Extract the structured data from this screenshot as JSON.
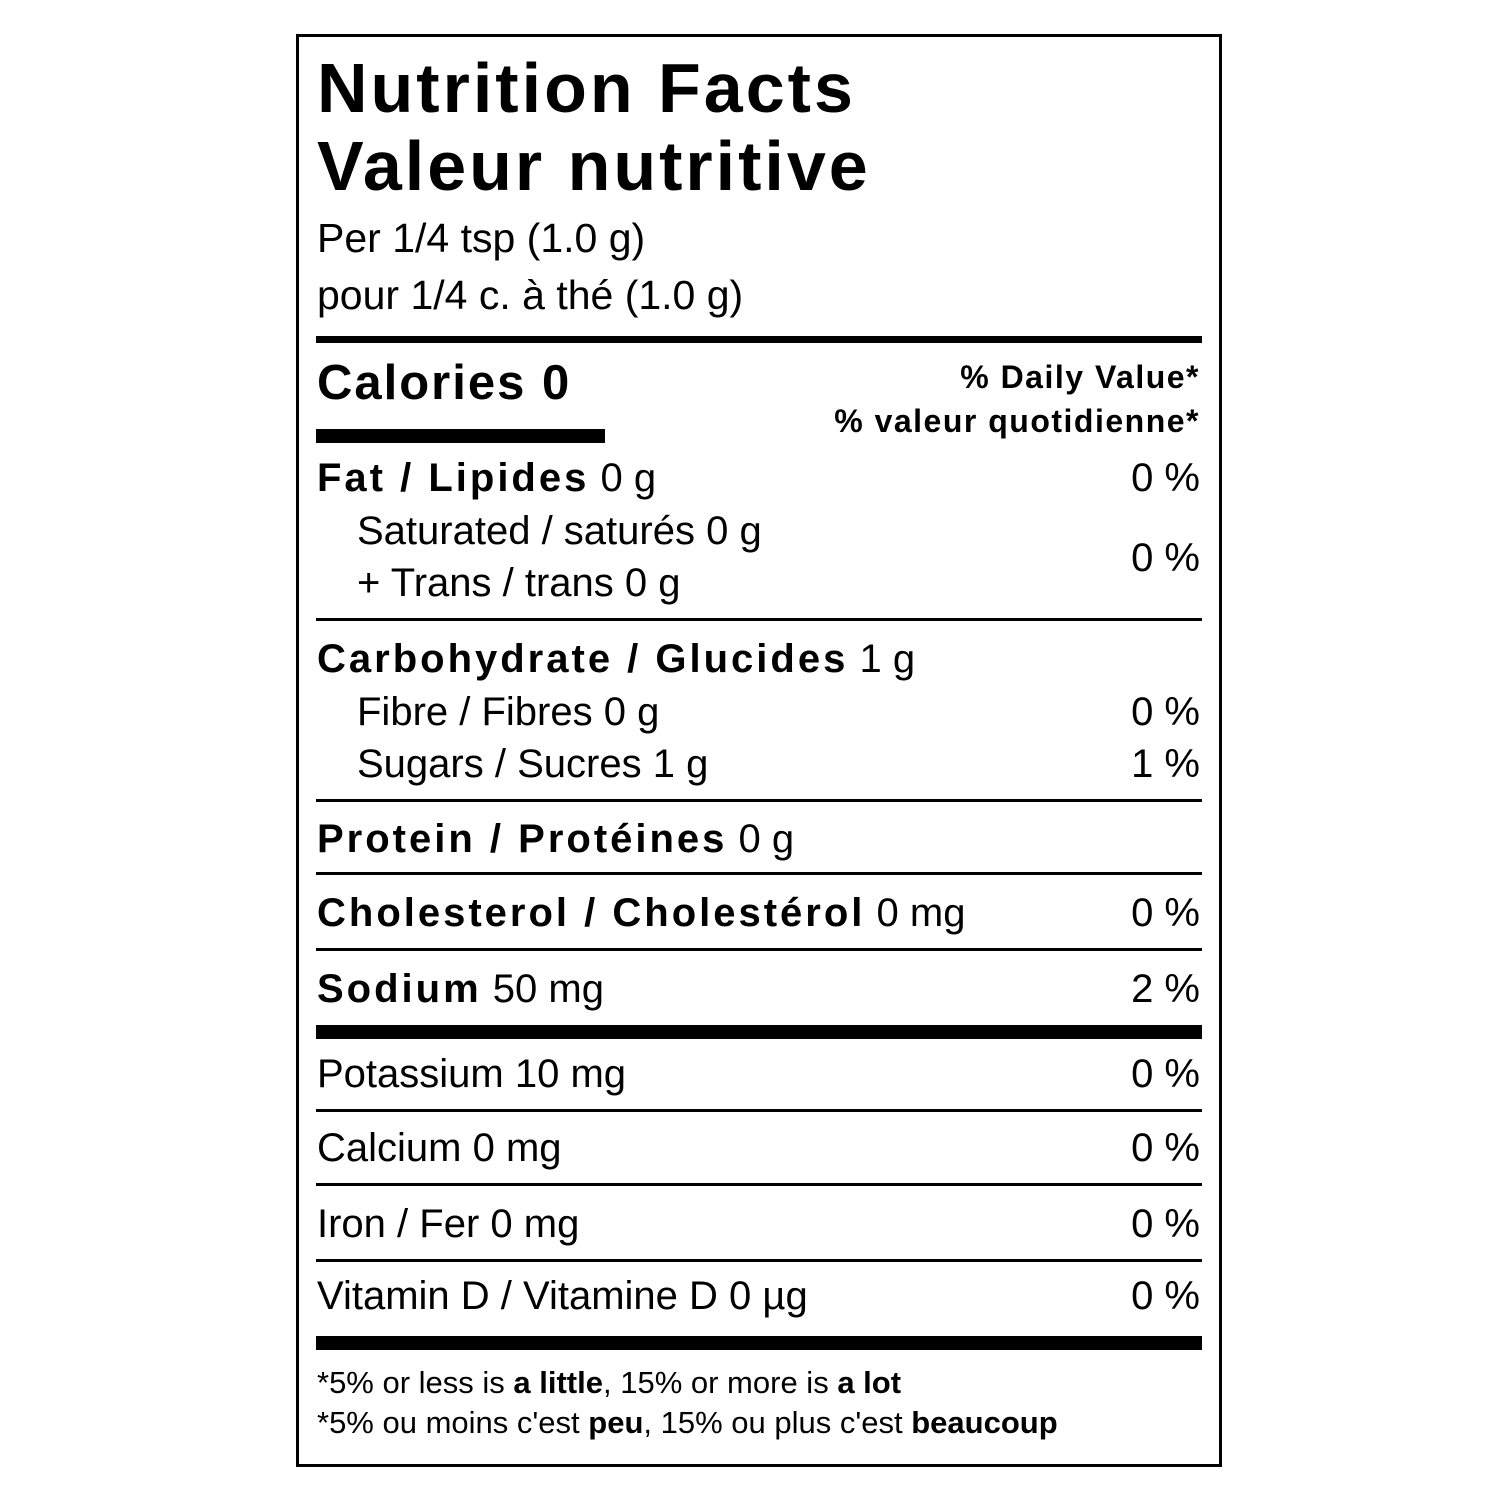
{
  "title": {
    "en": "Nutrition Facts",
    "fr": "Valeur nutritive"
  },
  "serving": {
    "en": "Per 1/4 tsp (1.0 g)",
    "fr": "pour 1/4 c. à thé (1.0 g)"
  },
  "calories": "Calories 0",
  "daily_value": {
    "en": "% Daily Value*",
    "fr": "% valeur quotidienne*"
  },
  "nutrients": {
    "fat": {
      "label": "Fat / Lipides",
      "amount": "0 g",
      "dv": "0 %"
    },
    "saturated": {
      "label": "Saturated / saturés",
      "amount": "0 g"
    },
    "trans": {
      "label": "+ Trans / trans",
      "amount": "0 g"
    },
    "sat_trans_dv": "0 %",
    "carbohydrate": {
      "label": "Carbohydrate / Glucides",
      "amount": "1 g"
    },
    "fibre": {
      "label": "Fibre / Fibres",
      "amount": "0 g",
      "dv": "0 %"
    },
    "sugars": {
      "label": "Sugars / Sucres",
      "amount": "1 g",
      "dv": "1 %"
    },
    "protein": {
      "label": "Protein / Protéines",
      "amount": "0 g"
    },
    "cholesterol": {
      "label": "Cholesterol / Cholestérol",
      "amount": "0 mg",
      "dv": "0 %"
    },
    "sodium": {
      "label": "Sodium",
      "amount": "50 mg",
      "dv": "2 %"
    },
    "potassium": {
      "label": "Potassium",
      "amount": "10 mg",
      "dv": "0 %"
    },
    "calcium": {
      "label": "Calcium",
      "amount": "0 mg",
      "dv": "0 %"
    },
    "iron": {
      "label": "Iron / Fer",
      "amount": "0 mg",
      "dv": "0 %"
    },
    "vitamin_d": {
      "label": "Vitamin D / Vitamine D",
      "amount": "0 µg",
      "dv": "0 %"
    }
  },
  "footnote": {
    "en": {
      "p1": "*5% or less is ",
      "b1": "a little",
      "p2": ", 15% or more is ",
      "b2": "a lot"
    },
    "fr": {
      "p1": "*5% ou moins c'est ",
      "b1": "peu",
      "p2": ", 15% ou plus c'est ",
      "b2": "beaucoup"
    }
  }
}
